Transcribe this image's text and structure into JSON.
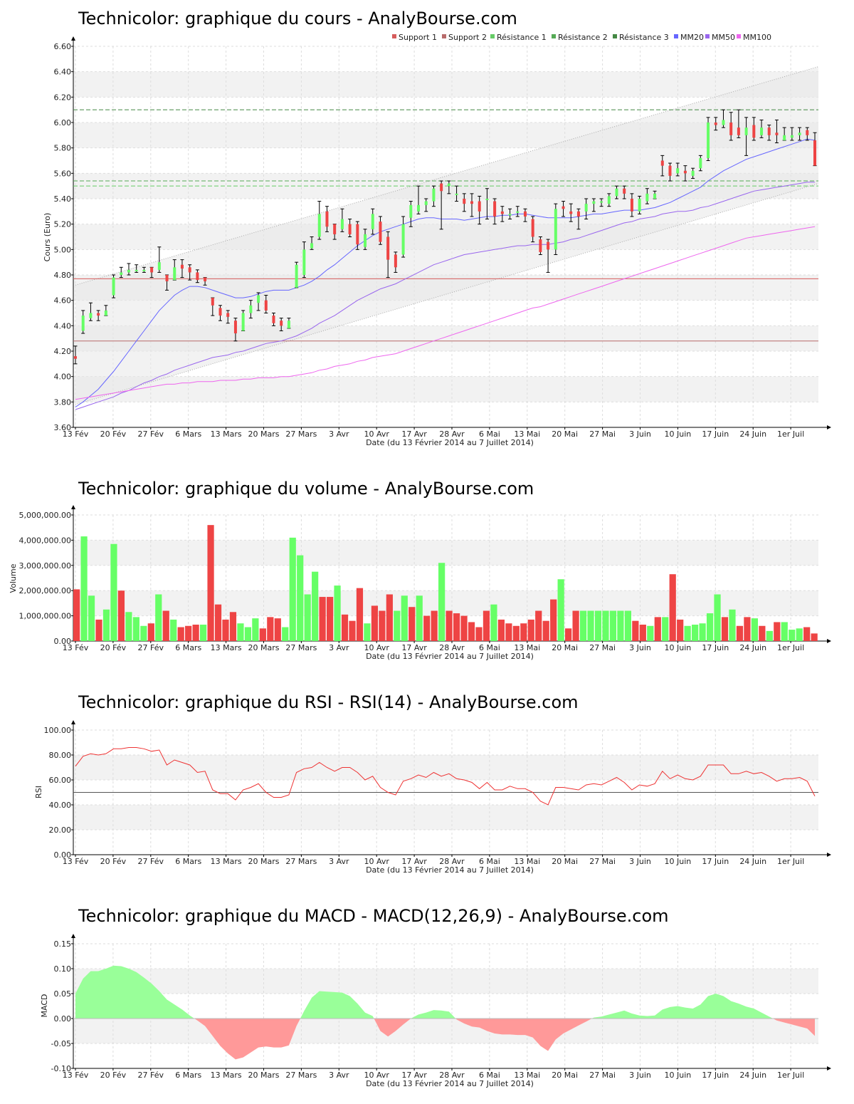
{
  "colors": {
    "up": "#66ff66",
    "down": "#ee4444",
    "support1": "#d65c5c",
    "support2": "#b86b6b",
    "res1": "#66cc66",
    "res2": "#55aa55",
    "res3": "#448844",
    "mm20": "#6666ff",
    "mm50": "#9966ee",
    "mm100": "#ee66ee",
    "rsiLine": "#ee3333",
    "macdPos": "#99ff99",
    "macdNeg": "#ff9999"
  },
  "chart_data": [
    {
      "id": "price",
      "type": "candlestick",
      "title": "Technicolor: graphique du cours - AnalyBourse.com",
      "xlabel": "Date (du 13 Février 2014 au 7 Juillet 2014)",
      "ylabel": "Cours (Euro)",
      "ylim": [
        3.6,
        6.6
      ],
      "yticks": [
        "3.60",
        "3.80",
        "4.00",
        "4.20",
        "4.40",
        "4.60",
        "4.80",
        "5.00",
        "5.20",
        "5.40",
        "5.60",
        "5.80",
        "6.00",
        "6.20",
        "6.40",
        "6.60"
      ],
      "xticks": [
        "13 Fév",
        "20 Fév",
        "27 Fév",
        "6 Mars",
        "13 Mars",
        "20 Mars",
        "27 Mars",
        "3 Avr",
        "10 Avr",
        "17 Avr",
        "28 Avr",
        "6 Mai",
        "13 Mai",
        "20 Mai",
        "27 Mai",
        "3 Juin",
        "10 Juin",
        "17 Juin",
        "24 Juin",
        "1er Juil"
      ],
      "legend": [
        "Support 1",
        "Support 2",
        "Résistance 1",
        "Résistance 2",
        "Résistance 3",
        "MM20",
        "MM50",
        "MM100"
      ],
      "levels": {
        "support1": 4.77,
        "support2": 4.28,
        "res1": 5.5,
        "res2": 5.54,
        "res3": 6.1
      },
      "close": [
        4.14,
        4.48,
        4.5,
        4.48,
        4.52,
        4.78,
        4.82,
        4.84,
        4.84,
        4.84,
        4.82,
        4.9,
        4.75,
        4.86,
        4.85,
        4.82,
        4.76,
        4.75,
        4.56,
        4.48,
        4.47,
        4.34,
        4.5,
        4.56,
        4.64,
        4.52,
        4.42,
        4.4,
        4.44,
        4.88,
        5.0,
        5.05,
        5.28,
        5.18,
        5.12,
        5.24,
        5.12,
        5.04,
        5.12,
        5.28,
        5.06,
        4.92,
        4.86,
        5.2,
        5.35,
        5.35,
        5.38,
        5.48,
        5.46,
        5.52,
        5.44,
        5.36,
        5.36,
        5.3,
        5.4,
        5.26,
        5.28,
        5.28,
        5.3,
        5.26,
        5.1,
        4.98,
        5.0,
        5.32,
        5.32,
        5.28,
        5.26,
        5.36,
        5.38,
        5.38,
        5.42,
        5.48,
        5.44,
        5.3,
        5.4,
        5.44,
        5.44,
        5.66,
        5.58,
        5.64,
        5.6,
        5.62,
        5.72,
        6.0,
        5.98,
        6.02,
        5.9,
        5.9,
        5.96,
        5.88,
        5.96,
        5.9,
        5.9,
        5.9,
        5.9,
        5.92,
        5.9,
        5.66
      ],
      "open": [
        4.16,
        4.36,
        4.46,
        4.5,
        4.48,
        4.64,
        4.8,
        4.82,
        4.84,
        4.84,
        4.86,
        4.84,
        4.8,
        4.76,
        4.88,
        4.86,
        4.82,
        4.78,
        4.62,
        4.54,
        4.5,
        4.44,
        4.36,
        4.5,
        4.58,
        4.6,
        4.48,
        4.44,
        4.38,
        4.7,
        4.8,
        5.01,
        5.1,
        5.3,
        5.2,
        5.16,
        5.2,
        5.2,
        5.02,
        5.16,
        5.22,
        5.1,
        4.96,
        4.96,
        5.25,
        5.3,
        5.35,
        5.38,
        5.52,
        5.5,
        5.44,
        5.4,
        5.38,
        5.38,
        5.4,
        5.38,
        5.3,
        5.28,
        5.3,
        5.3,
        5.24,
        5.08,
        5.06,
        5.0,
        5.34,
        5.3,
        5.3,
        5.3,
        5.36,
        5.38,
        5.36,
        5.42,
        5.48,
        5.4,
        5.3,
        5.38,
        5.4,
        5.7,
        5.66,
        5.6,
        5.62,
        5.58,
        5.64,
        5.72,
        6.0,
        5.98,
        6.0,
        5.96,
        5.9,
        5.98,
        5.9,
        5.96,
        5.92,
        5.86,
        5.88,
        5.9,
        5.94,
        5.86
      ],
      "high": [
        4.24,
        4.52,
        4.58,
        4.52,
        4.56,
        4.8,
        4.86,
        4.89,
        4.88,
        4.86,
        4.86,
        5.02,
        4.8,
        4.92,
        4.92,
        4.88,
        4.84,
        4.78,
        4.62,
        4.56,
        4.52,
        4.46,
        4.52,
        4.6,
        4.66,
        4.64,
        4.5,
        4.46,
        4.46,
        4.9,
        5.06,
        5.1,
        5.38,
        5.34,
        5.2,
        5.32,
        5.24,
        5.22,
        5.16,
        5.32,
        5.26,
        5.14,
        4.98,
        5.26,
        5.38,
        5.5,
        5.4,
        5.5,
        5.54,
        5.54,
        5.5,
        5.44,
        5.44,
        5.42,
        5.48,
        5.4,
        5.34,
        5.32,
        5.34,
        5.32,
        5.26,
        5.1,
        5.08,
        5.36,
        5.38,
        5.36,
        5.32,
        5.4,
        5.4,
        5.4,
        5.44,
        5.5,
        5.5,
        5.44,
        5.42,
        5.48,
        5.46,
        5.74,
        5.68,
        5.68,
        5.66,
        5.64,
        5.74,
        6.04,
        6.04,
        6.1,
        6.08,
        6.1,
        6.04,
        6.04,
        6.02,
        5.98,
        6.02,
        5.96,
        5.96,
        5.96,
        5.96,
        5.92
      ],
      "low": [
        4.1,
        4.34,
        4.44,
        4.44,
        4.48,
        4.62,
        4.78,
        4.8,
        4.82,
        4.82,
        4.78,
        4.82,
        4.68,
        4.76,
        4.78,
        4.76,
        4.74,
        4.72,
        4.48,
        4.44,
        4.42,
        4.28,
        4.36,
        4.46,
        4.52,
        4.5,
        4.4,
        4.36,
        4.38,
        4.7,
        4.78,
        5.0,
        5.08,
        5.14,
        5.08,
        5.14,
        5.1,
        5.0,
        5.0,
        5.12,
        5.04,
        4.78,
        4.82,
        4.94,
        5.18,
        5.28,
        5.3,
        5.34,
        5.16,
        5.44,
        5.38,
        5.3,
        5.26,
        5.2,
        5.24,
        5.2,
        5.22,
        5.24,
        5.26,
        5.22,
        5.06,
        4.96,
        4.82,
        4.96,
        5.26,
        5.22,
        5.16,
        5.24,
        5.3,
        5.34,
        5.34,
        5.4,
        5.4,
        5.26,
        5.28,
        5.36,
        5.4,
        5.58,
        5.54,
        5.58,
        5.54,
        5.56,
        5.62,
        5.7,
        5.94,
        5.96,
        5.86,
        5.88,
        5.74,
        5.86,
        5.88,
        5.86,
        5.84,
        5.86,
        5.86,
        5.86,
        5.86,
        5.66
      ],
      "mm20": [
        3.76,
        3.8,
        3.85,
        3.9,
        3.97,
        4.04,
        4.12,
        4.2,
        4.28,
        4.36,
        4.44,
        4.52,
        4.58,
        4.64,
        4.68,
        4.71,
        4.71,
        4.7,
        4.68,
        4.66,
        4.64,
        4.62,
        4.62,
        4.63,
        4.65,
        4.67,
        4.68,
        4.68,
        4.68,
        4.7,
        4.72,
        4.75,
        4.79,
        4.84,
        4.88,
        4.93,
        4.98,
        5.03,
        5.07,
        5.11,
        5.14,
        5.16,
        5.18,
        5.2,
        5.22,
        5.24,
        5.25,
        5.25,
        5.24,
        5.24,
        5.24,
        5.23,
        5.24,
        5.25,
        5.26,
        5.26,
        5.27,
        5.27,
        5.28,
        5.28,
        5.27,
        5.26,
        5.25,
        5.25,
        5.25,
        5.25,
        5.26,
        5.27,
        5.28,
        5.28,
        5.29,
        5.3,
        5.31,
        5.31,
        5.31,
        5.32,
        5.33,
        5.35,
        5.37,
        5.4,
        5.43,
        5.46,
        5.49,
        5.54,
        5.58,
        5.62,
        5.65,
        5.68,
        5.71,
        5.73,
        5.75,
        5.77,
        5.79,
        5.81,
        5.83,
        5.85,
        5.87,
        5.86
      ],
      "mm50": [
        3.74,
        3.76,
        3.78,
        3.8,
        3.82,
        3.84,
        3.87,
        3.89,
        3.92,
        3.95,
        3.97,
        4.0,
        4.02,
        4.05,
        4.07,
        4.09,
        4.11,
        4.13,
        4.15,
        4.16,
        4.17,
        4.19,
        4.2,
        4.22,
        4.24,
        4.26,
        4.27,
        4.28,
        4.3,
        4.32,
        4.35,
        4.38,
        4.42,
        4.45,
        4.48,
        4.52,
        4.56,
        4.6,
        4.63,
        4.66,
        4.69,
        4.71,
        4.73,
        4.76,
        4.79,
        4.82,
        4.85,
        4.88,
        4.9,
        4.92,
        4.94,
        4.96,
        4.97,
        4.98,
        4.99,
        5.0,
        5.01,
        5.02,
        5.03,
        5.03,
        5.04,
        5.04,
        5.04,
        5.05,
        5.06,
        5.08,
        5.09,
        5.11,
        5.13,
        5.15,
        5.17,
        5.19,
        5.21,
        5.22,
        5.24,
        5.25,
        5.26,
        5.28,
        5.29,
        5.3,
        5.3,
        5.31,
        5.33,
        5.34,
        5.36,
        5.38,
        5.4,
        5.42,
        5.44,
        5.46,
        5.47,
        5.48,
        5.49,
        5.5,
        5.51,
        5.52,
        5.53,
        5.53
      ],
      "mm100": [
        3.82,
        3.83,
        3.84,
        3.85,
        3.86,
        3.87,
        3.88,
        3.89,
        3.9,
        3.91,
        3.92,
        3.93,
        3.94,
        3.94,
        3.95,
        3.95,
        3.96,
        3.96,
        3.96,
        3.97,
        3.97,
        3.97,
        3.98,
        3.98,
        3.99,
        3.99,
        3.99,
        4.0,
        4.0,
        4.01,
        4.02,
        4.03,
        4.05,
        4.06,
        4.08,
        4.09,
        4.1,
        4.12,
        4.13,
        4.15,
        4.16,
        4.17,
        4.18,
        4.2,
        4.22,
        4.24,
        4.26,
        4.28,
        4.3,
        4.32,
        4.34,
        4.36,
        4.38,
        4.4,
        4.42,
        4.44,
        4.46,
        4.48,
        4.5,
        4.52,
        4.54,
        4.55,
        4.57,
        4.59,
        4.61,
        4.63,
        4.65,
        4.67,
        4.69,
        4.71,
        4.73,
        4.75,
        4.77,
        4.79,
        4.81,
        4.83,
        4.85,
        4.87,
        4.89,
        4.91,
        4.93,
        4.95,
        4.97,
        4.99,
        5.01,
        5.03,
        5.05,
        5.07,
        5.09,
        5.1,
        5.11,
        5.12,
        5.13,
        5.14,
        5.15,
        5.16,
        5.17,
        5.18
      ]
    },
    {
      "id": "volume",
      "type": "bar",
      "title": "Technicolor: graphique du volume - AnalyBourse.com",
      "xlabel": "Date (du 13 Février 2014 au 7 Juillet 2014)",
      "ylabel": "Volume",
      "ylim": [
        0,
        5000000
      ],
      "yticks": [
        "0.00",
        "1,000,000.00",
        "2,000,000.00",
        "3,000,000.00",
        "4,000,000.00",
        "5,000,000.00"
      ],
      "xticks": [
        "13 Fév",
        "20 Fév",
        "27 Fév",
        "6 Mars",
        "13 Mars",
        "20 Mars",
        "27 Mars",
        "3 Avr",
        "10 Avr",
        "17 Avr",
        "28 Avr",
        "6 Mai",
        "13 Mai",
        "20 Mai",
        "27 Mai",
        "3 Juin",
        "10 Juin",
        "17 Juin",
        "24 Juin",
        "1er Juil"
      ],
      "values": [
        2050000,
        4150000,
        1800000,
        850000,
        1250000,
        3850000,
        2000000,
        1150000,
        950000,
        600000,
        700000,
        1850000,
        1200000,
        850000,
        550000,
        600000,
        650000,
        650000,
        4600000,
        1450000,
        850000,
        1150000,
        700000,
        550000,
        900000,
        500000,
        950000,
        900000,
        550000,
        4100000,
        3400000,
        1850000,
        2750000,
        1750000,
        1750000,
        2200000,
        1050000,
        800000,
        2100000,
        700000,
        1400000,
        1200000,
        1850000,
        1200000,
        1800000,
        1350000,
        1800000,
        1000000,
        1200000,
        3100000,
        1200000,
        1100000,
        1000000,
        750000,
        550000,
        1200000,
        1450000,
        850000,
        700000,
        600000,
        700000,
        850000,
        1200000,
        800000,
        1650000,
        2450000,
        500000,
        1200000,
        1200000,
        1200000,
        1200000,
        1200000,
        1200000,
        1200000,
        1200000,
        800000,
        650000,
        600000,
        950000,
        950000,
        2650000,
        850000,
        600000,
        650000,
        700000,
        1100000,
        1850000,
        950000,
        1250000,
        600000,
        950000,
        900000,
        600000,
        400000,
        750000,
        750000,
        450000,
        500000,
        550000,
        300000
      ],
      "up": [
        false,
        true,
        true,
        false,
        true,
        true,
        false,
        true,
        true,
        true,
        false,
        true,
        false,
        true,
        false,
        false,
        false,
        true,
        false,
        false,
        false,
        false,
        true,
        true,
        true,
        false,
        false,
        false,
        true,
        true,
        true,
        true,
        true,
        false,
        false,
        true,
        false,
        false,
        false,
        true,
        false,
        false,
        false,
        true,
        true,
        false,
        true,
        false,
        false,
        true,
        false,
        false,
        false,
        false,
        false,
        false,
        true,
        false,
        false,
        false,
        false,
        false,
        false,
        false,
        false,
        true,
        false,
        false,
        true,
        true,
        true,
        true,
        true,
        true,
        true,
        false,
        false,
        true,
        false,
        true,
        false,
        false,
        true,
        true,
        true,
        true,
        true,
        false,
        true,
        false,
        false,
        true,
        false,
        true,
        false,
        true,
        true,
        true,
        false,
        false
      ]
    },
    {
      "id": "rsi",
      "type": "line",
      "title": "Technicolor: graphique du RSI - RSI(14) - AnalyBourse.com",
      "xlabel": "Date (du 13 Février 2014 au 7 Juillet 2014)",
      "ylabel": "RSI",
      "ylim": [
        0,
        100
      ],
      "yticks": [
        "0.00",
        "20.00",
        "40.00",
        "60.00",
        "80.00",
        "100.00"
      ],
      "xticks": [
        "13 Fév",
        "20 Fév",
        "27 Fév",
        "6 Mars",
        "13 Mars",
        "20 Mars",
        "27 Mars",
        "3 Avr",
        "10 Avr",
        "17 Avr",
        "28 Avr",
        "6 Mai",
        "13 Mai",
        "20 Mai",
        "27 Mai",
        "3 Juin",
        "10 Juin",
        "17 Juin",
        "24 Juin",
        "1er Juil"
      ],
      "reference": 50,
      "values": [
        71,
        79,
        81,
        80,
        81,
        85,
        85,
        86,
        86,
        85,
        83,
        84,
        72,
        76,
        74,
        72,
        66,
        67,
        52,
        49,
        49,
        44,
        52,
        54,
        57,
        50,
        46,
        46,
        48,
        66,
        69,
        70,
        74,
        70,
        67,
        70,
        70,
        66,
        60,
        63,
        54,
        50,
        48,
        59,
        61,
        64,
        62,
        66,
        63,
        65,
        61,
        60,
        58,
        53,
        58,
        52,
        52,
        55,
        53,
        53,
        50,
        43,
        40,
        54,
        54,
        53,
        52,
        56,
        57,
        56,
        59,
        62,
        58,
        52,
        56,
        55,
        57,
        67,
        61,
        64,
        61,
        60,
        63,
        72,
        72,
        72,
        65,
        65,
        67,
        65,
        66,
        63,
        59,
        61,
        61,
        62,
        59,
        47
      ]
    },
    {
      "id": "macd",
      "type": "area",
      "title": "Technicolor: graphique du MACD - MACD(12,26,9) - AnalyBourse.com",
      "xlabel": "Date (du 13 Février 2014 au 7 Juillet 2014)",
      "ylabel": "MACD",
      "ylim": [
        -0.1,
        0.15
      ],
      "yticks": [
        "-0.10",
        "-0.05",
        "0.00",
        "0.05",
        "0.10",
        "0.15"
      ],
      "xticks": [
        "13 Fév",
        "20 Fév",
        "27 Fév",
        "6 Mars",
        "13 Mars",
        "20 Mars",
        "27 Mars",
        "3 Avr",
        "10 Avr",
        "17 Avr",
        "28 Avr",
        "6 Mai",
        "13 Mai",
        "20 Mai",
        "27 Mai",
        "3 Juin",
        "10 Juin",
        "17 Juin",
        "24 Juin",
        "1er Juil"
      ],
      "values": [
        0.05,
        0.08,
        0.095,
        0.095,
        0.1,
        0.106,
        0.105,
        0.1,
        0.093,
        0.082,
        0.07,
        0.055,
        0.038,
        0.028,
        0.018,
        0.006,
        -0.004,
        -0.015,
        -0.035,
        -0.055,
        -0.07,
        -0.082,
        -0.078,
        -0.068,
        -0.058,
        -0.056,
        -0.058,
        -0.058,
        -0.054,
        -0.015,
        0.015,
        0.042,
        0.055,
        0.054,
        0.053,
        0.052,
        0.045,
        0.03,
        0.012,
        0.005,
        -0.025,
        -0.036,
        -0.025,
        -0.012,
        0.0,
        0.008,
        0.012,
        0.017,
        0.016,
        0.014,
        -0.002,
        -0.01,
        -0.016,
        -0.018,
        -0.025,
        -0.03,
        -0.032,
        -0.032,
        -0.033,
        -0.033,
        -0.038,
        -0.055,
        -0.065,
        -0.042,
        -0.03,
        -0.022,
        -0.014,
        -0.006,
        0.002,
        0.004,
        0.008,
        0.012,
        0.016,
        0.01,
        0.006,
        0.005,
        0.006,
        0.018,
        0.023,
        0.025,
        0.022,
        0.02,
        0.028,
        0.045,
        0.05,
        0.045,
        0.035,
        0.03,
        0.024,
        0.02,
        0.012,
        0.004,
        -0.004,
        -0.008,
        -0.012,
        -0.016,
        -0.02,
        -0.035
      ]
    }
  ]
}
